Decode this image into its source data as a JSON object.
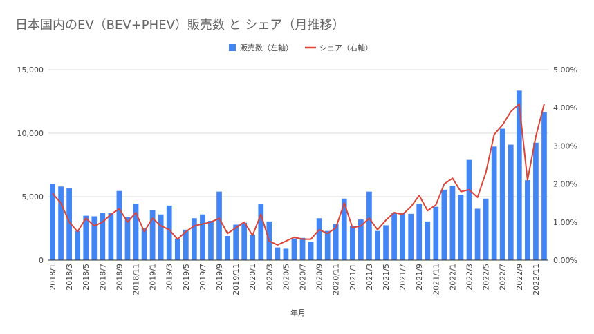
{
  "chart_data": {
    "type": "bar",
    "title": "日本国内のEV（BEV+PHEV）販売数 と シェア（月推移）",
    "xlabel": "年月",
    "ylabel": "",
    "y2label": "",
    "ylim": [
      0,
      15000
    ],
    "y2lim": [
      0,
      5
    ],
    "yticks": [
      "0",
      "5,000",
      "10,000",
      "15,000"
    ],
    "y2ticks": [
      "0.00%",
      "1.00%",
      "2.00%",
      "3.00%",
      "4.00%",
      "5.00%"
    ],
    "grid": true,
    "legend_position": "top-center",
    "categories": [
      "2018/1",
      "2018/2",
      "2018/3",
      "2018/4",
      "2018/5",
      "2018/6",
      "2018/7",
      "2018/8",
      "2018/9",
      "2018/10",
      "2018/11",
      "2018/12",
      "2019/1",
      "2019/2",
      "2019/3",
      "2019/4",
      "2019/5",
      "2019/6",
      "2019/7",
      "2019/8",
      "2019/9",
      "2019/10",
      "2019/11",
      "2019/12",
      "2020/1",
      "2020/2",
      "2020/3",
      "2020/4",
      "2020/5",
      "2020/6",
      "2020/7",
      "2020/8",
      "2020/9",
      "2020/10",
      "2020/11",
      "2020/12",
      "2021/1",
      "2021/2",
      "2021/3",
      "2021/4",
      "2021/5",
      "2021/6",
      "2021/7",
      "2021/8",
      "2021/9",
      "2021/10",
      "2021/11",
      "2021/12",
      "2022/1",
      "2022/2",
      "2022/3",
      "2022/4",
      "2022/5",
      "2022/6",
      "2022/7",
      "2022/8",
      "2022/9",
      "2022/10",
      "2022/11",
      "2022/12"
    ],
    "tick_labels": [
      "2018/1",
      "2018/3",
      "2018/5",
      "2018/7",
      "2018/9",
      "2018/11",
      "2019/1",
      "2019/3",
      "2019/5",
      "2019/7",
      "2019/9",
      "2019/11",
      "2020/1",
      "2020/3",
      "2020/5",
      "2020/7",
      "2020/9",
      "2020/11",
      "2021/1",
      "2021/3",
      "2021/5",
      "2021/7",
      "2021/9",
      "2021/11",
      "2022/1",
      "2022/3",
      "2022/5",
      "2022/7",
      "2022/9",
      "2022/11"
    ],
    "series": [
      {
        "name": "販売数（左軸）",
        "axis": "left",
        "kind": "bar",
        "color": "#4285f4",
        "values": [
          6000,
          5800,
          5650,
          2300,
          3500,
          3450,
          3700,
          3700,
          5450,
          3400,
          4450,
          2500,
          3950,
          3600,
          4300,
          1700,
          2400,
          3300,
          3600,
          3100,
          5400,
          1900,
          2800,
          2950,
          2000,
          4400,
          3050,
          1000,
          900,
          1700,
          1750,
          1450,
          3300,
          2300,
          2850,
          4850,
          2700,
          3200,
          5400,
          2300,
          2750,
          3700,
          3700,
          3650,
          4450,
          3050,
          4200,
          5550,
          5850,
          5150,
          7900,
          4050,
          4850,
          8950,
          10350,
          9100,
          13350,
          6300,
          9250,
          11650
        ]
      },
      {
        "name": "シェア（右軸）",
        "axis": "right",
        "kind": "line",
        "color": "#db4437",
        "values": [
          1.75,
          1.5,
          1.0,
          0.75,
          1.1,
          0.9,
          1.0,
          1.2,
          1.35,
          1.0,
          1.25,
          0.75,
          1.1,
          0.9,
          0.8,
          0.55,
          0.75,
          0.9,
          0.95,
          1.0,
          1.1,
          0.7,
          0.85,
          1.0,
          0.65,
          1.2,
          0.5,
          0.4,
          0.5,
          0.6,
          0.55,
          0.55,
          0.8,
          0.7,
          0.85,
          1.5,
          0.85,
          0.9,
          1.1,
          0.8,
          1.05,
          1.25,
          1.2,
          1.4,
          1.7,
          1.3,
          1.45,
          2.0,
          2.15,
          1.8,
          1.85,
          1.65,
          2.3,
          3.3,
          3.55,
          3.9,
          4.1,
          2.1,
          3.25,
          4.1
        ]
      }
    ]
  }
}
